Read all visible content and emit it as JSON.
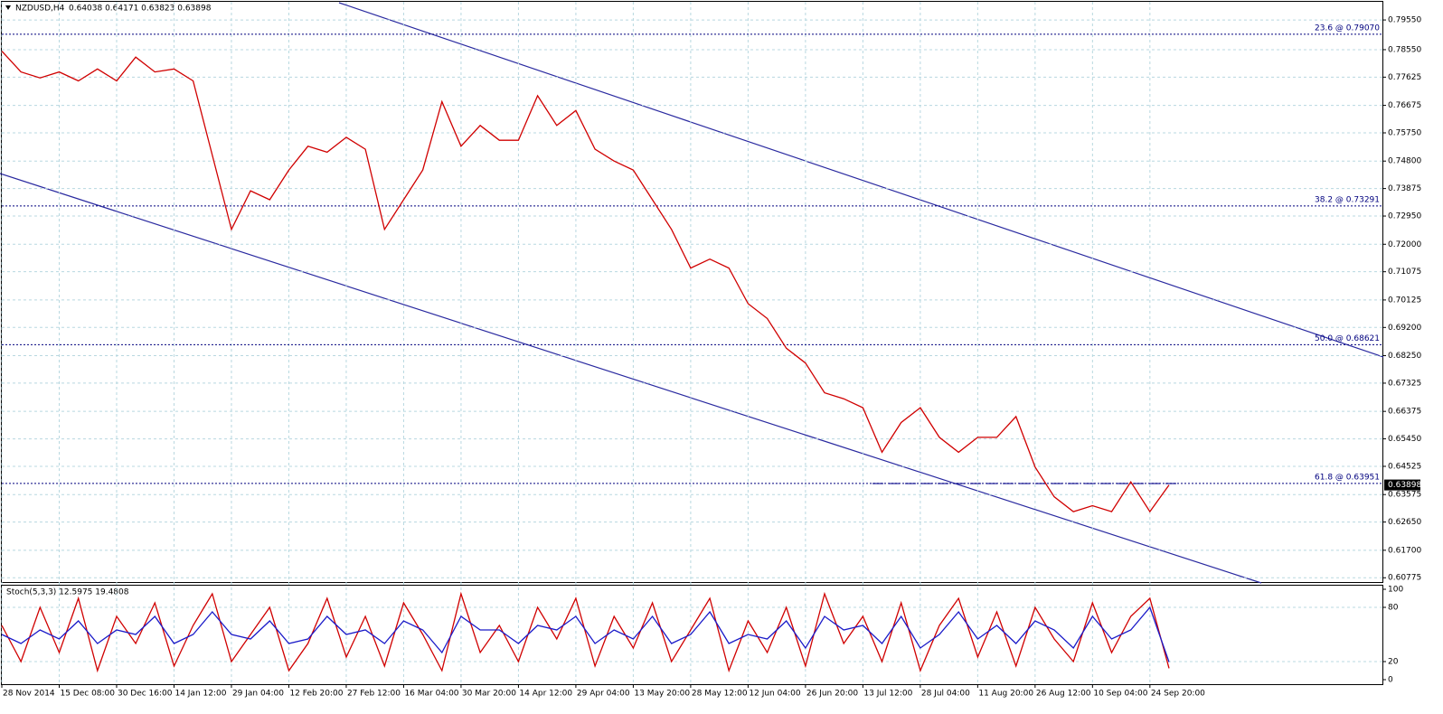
{
  "chart_data": [
    {
      "type": "line",
      "title": "NZDUSD,H4",
      "subtitle": "0.64038 0.64171 0.63823 0.63898",
      "grid": true,
      "categories": [
        "28 Nov 2014",
        null,
        null,
        "15 Dec 08:00",
        null,
        null,
        "30 Dec 16:00",
        null,
        null,
        "14 Jan 12:00",
        null,
        null,
        "29 Jan 04:00",
        null,
        null,
        "12 Feb 20:00",
        null,
        null,
        "27 Feb 12:00",
        null,
        null,
        "16 Mar 04:00",
        null,
        null,
        "30 Mar 20:00",
        null,
        null,
        "14 Apr 12:00",
        null,
        null,
        "29 Apr 04:00",
        null,
        null,
        "13 May 20:00",
        null,
        null,
        "28 May 12:00",
        null,
        null,
        "12 Jun 04:00",
        null,
        null,
        "26 Jun 20:00",
        null,
        null,
        "13 Jul 12:00",
        null,
        null,
        "28 Jul 04:00",
        null,
        null,
        "11 Aug 20:00",
        null,
        null,
        "26 Aug 12:00",
        null,
        null,
        "10 Sep 04:00",
        null,
        null,
        "24 Sep 20:00",
        null
      ],
      "series": [
        {
          "color": "#d00000",
          "values": [
            0.785,
            0.778,
            0.776,
            0.778,
            0.775,
            0.779,
            0.775,
            0.783,
            0.778,
            0.779,
            0.775,
            0.75,
            0.725,
            0.738,
            0.735,
            0.745,
            0.753,
            0.751,
            0.756,
            0.752,
            0.725,
            0.735,
            0.745,
            0.768,
            0.753,
            0.76,
            0.755,
            0.755,
            0.77,
            0.76,
            0.765,
            0.752,
            0.748,
            0.745,
            0.735,
            0.725,
            0.712,
            0.715,
            0.712,
            0.7,
            0.695,
            0.685,
            0.68,
            0.67,
            0.668,
            0.665,
            0.65,
            0.66,
            0.665,
            0.655,
            0.65,
            0.655,
            0.655,
            0.662,
            0.645,
            0.635,
            0.63,
            0.632,
            0.63,
            0.64,
            0.63,
            0.63898
          ]
        }
      ],
      "ylim": [
        0.606,
        0.801
      ],
      "yticks": [
        {
          "value": 0.7955,
          "label": "0.79550"
        },
        {
          "value": 0.7855,
          "label": "0.78550"
        },
        {
          "value": 0.77625,
          "label": "0.77625"
        },
        {
          "value": 0.76675,
          "label": "0.76675"
        },
        {
          "value": 0.7575,
          "label": "0.75750"
        },
        {
          "value": 0.748,
          "label": "0.74800"
        },
        {
          "value": 0.73875,
          "label": "0.73875"
        },
        {
          "value": 0.7295,
          "label": "0.72950"
        },
        {
          "value": 0.72,
          "label": "0.72000"
        },
        {
          "value": 0.71075,
          "label": "0.71075"
        },
        {
          "value": 0.70125,
          "label": "0.70125"
        },
        {
          "value": 0.692,
          "label": "0.69200"
        },
        {
          "value": 0.6825,
          "label": "0.68250"
        },
        {
          "value": 0.67325,
          "label": "0.67325"
        },
        {
          "value": 0.66375,
          "label": "0.66375"
        },
        {
          "value": 0.6545,
          "label": "0.65450"
        },
        {
          "value": 0.64525,
          "label": "0.64525"
        },
        {
          "value": 0.63575,
          "label": "0.63575"
        },
        {
          "value": 0.6265,
          "label": "0.62650"
        },
        {
          "value": 0.617,
          "label": "0.61700"
        },
        {
          "value": 0.60775,
          "label": "0.60775"
        }
      ],
      "levels": [
        {
          "value": 0.7907,
          "label": "23.6 @ 0.79070"
        },
        {
          "value": 0.73291,
          "label": "38.2 @ 0.73291"
        },
        {
          "value": 0.68621,
          "label": "50.0 @ 0.68621"
        },
        {
          "value": 0.63951,
          "label": "61.8 @ 0.63951"
        }
      ],
      "current_price": {
        "value": 0.63898,
        "label": "0.63898"
      }
    },
    {
      "type": "line",
      "title": "Stoch(5,3,3) 12.5975 19.4808",
      "ylim": [
        0,
        100
      ],
      "yticks": [
        0,
        20,
        80,
        100
      ],
      "series": [
        {
          "color": "#d00000",
          "values": [
            60,
            20,
            80,
            30,
            90,
            10,
            70,
            40,
            85,
            15,
            60,
            95,
            20,
            50,
            80,
            10,
            40,
            90,
            25,
            70,
            15,
            85,
            50,
            10,
            95,
            30,
            60,
            20,
            80,
            45,
            90,
            15,
            70,
            35,
            85,
            20,
            55,
            90,
            10,
            65,
            30,
            80,
            15,
            95,
            40,
            70,
            20,
            85,
            10,
            60,
            90,
            25,
            75,
            15,
            80,
            45,
            20,
            85,
            30,
            70,
            90,
            12.5975
          ]
        },
        {
          "color": "#1a1ac8",
          "values": [
            50,
            40,
            55,
            45,
            65,
            40,
            55,
            50,
            70,
            40,
            50,
            75,
            50,
            45,
            65,
            40,
            45,
            70,
            50,
            55,
            40,
            65,
            55,
            30,
            70,
            55,
            55,
            40,
            60,
            55,
            70,
            40,
            55,
            45,
            70,
            40,
            50,
            75,
            40,
            50,
            45,
            65,
            35,
            70,
            55,
            60,
            40,
            70,
            35,
            50,
            75,
            45,
            60,
            40,
            65,
            55,
            35,
            70,
            45,
            55,
            80,
            19.4808
          ]
        }
      ]
    }
  ]
}
